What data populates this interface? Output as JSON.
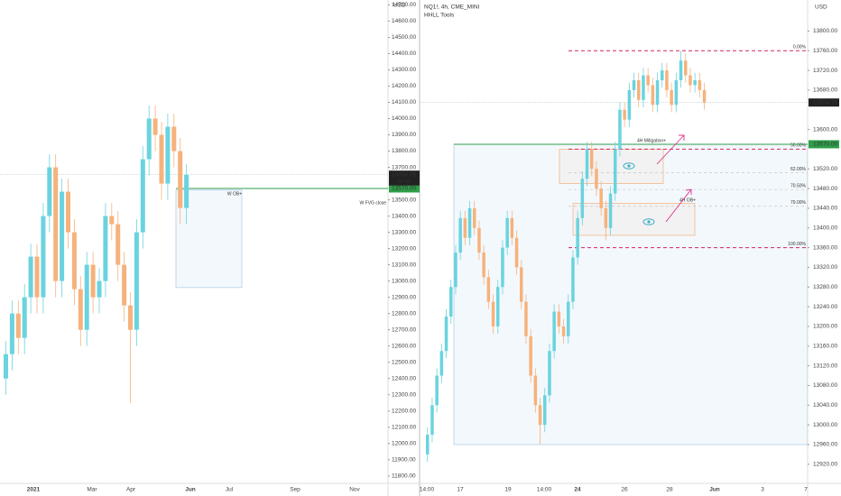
{
  "chart_data": [
    {
      "type": "candlestick",
      "axis_unit": "USD",
      "up_color": "#6ad3df",
      "down_color": "#f6b27c",
      "ylim": [
        11760,
        14730
      ],
      "yticks": [
        {
          "value": 11800,
          "label": "11800.00"
        },
        {
          "value": 11900,
          "label": "11900.00"
        },
        {
          "value": 12000,
          "label": "12000.00"
        },
        {
          "value": 12100,
          "label": "12100.00"
        },
        {
          "value": 12200,
          "label": "12200.00"
        },
        {
          "value": 12300,
          "label": "12300.00"
        },
        {
          "value": 12400,
          "label": "12400.00"
        },
        {
          "value": 12500,
          "label": "12500.00"
        },
        {
          "value": 12600,
          "label": "12600.00"
        },
        {
          "value": 12700,
          "label": "12700.00"
        },
        {
          "value": 12800,
          "label": "12800.00"
        },
        {
          "value": 12900,
          "label": "12900.00"
        },
        {
          "value": 13000,
          "label": "13000.00"
        },
        {
          "value": 13100,
          "label": "13100.00"
        },
        {
          "value": 13200,
          "label": "13200.00"
        },
        {
          "value": 13300,
          "label": "13300.00"
        },
        {
          "value": 13400,
          "label": "13400.00"
        },
        {
          "value": 13500,
          "label": "13500.00"
        },
        {
          "value": 13700,
          "label": "13700.00"
        },
        {
          "value": 13800,
          "label": "13800.00"
        },
        {
          "value": 13900,
          "label": "13900.00"
        },
        {
          "value": 14000,
          "label": "14000.00"
        },
        {
          "value": 14100,
          "label": "14100.00"
        },
        {
          "value": 14200,
          "label": "14200.00"
        },
        {
          "value": 14300,
          "label": "14300.00"
        },
        {
          "value": 14400,
          "label": "14400.00"
        },
        {
          "value": 14500,
          "label": "14500.00"
        },
        {
          "value": 14600,
          "label": "14600.00"
        },
        {
          "value": 14700,
          "label": "14700.00"
        }
      ],
      "candles": [
        [
          12400,
          12630,
          12300,
          12550
        ],
        [
          12550,
          12880,
          12450,
          12800
        ],
        [
          12800,
          12880,
          12550,
          12650
        ],
        [
          12650,
          12980,
          12550,
          12900
        ],
        [
          12900,
          13230,
          12800,
          13150
        ],
        [
          13150,
          13230,
          12800,
          12900
        ],
        [
          12900,
          13480,
          12800,
          13400
        ],
        [
          13400,
          13780,
          13300,
          13700
        ],
        [
          13700,
          13780,
          12900,
          13000
        ],
        [
          13000,
          13630,
          12900,
          13550
        ],
        [
          13550,
          13630,
          13200,
          13300
        ],
        [
          13300,
          13380,
          12850,
          12950
        ],
        [
          12950,
          13030,
          12600,
          12700
        ],
        [
          12700,
          13180,
          12600,
          13100
        ],
        [
          13100,
          13180,
          12800,
          12900
        ],
        [
          12900,
          13080,
          12800,
          13000
        ],
        [
          13000,
          13480,
          12900,
          13400
        ],
        [
          13400,
          13480,
          13250,
          13350
        ],
        [
          13350,
          13430,
          13000,
          13100
        ],
        [
          13100,
          13180,
          12750,
          12850
        ],
        [
          12850,
          12930,
          12250,
          12700
        ],
        [
          12700,
          13380,
          12600,
          13300
        ],
        [
          13300,
          13830,
          13200,
          13750
        ],
        [
          13750,
          14080,
          13650,
          14000
        ],
        [
          14000,
          14080,
          13800,
          13900
        ],
        [
          13900,
          13980,
          13500,
          13600
        ],
        [
          13600,
          14030,
          13500,
          13950
        ],
        [
          13950,
          14030,
          13700,
          13800
        ],
        [
          13800,
          13880,
          13350,
          13450
        ],
        [
          13450,
          13720,
          13350,
          13654.75
        ]
      ],
      "time_labels": [
        "2021",
        "Mar",
        "Apr",
        "Jun",
        "Jul",
        "Sep",
        "Nov"
      ],
      "price_labels": [
        {
          "value": 13654.75,
          "label": "13654.75"
        },
        {
          "value": 13570,
          "label": "13570.00"
        }
      ],
      "countdown": "-4d 1h",
      "annotations": [
        "W OB+",
        "W FVG close"
      ],
      "zones": [
        {
          "top": 13560,
          "bottom": 12960
        }
      ]
    },
    {
      "type": "candlestick",
      "title": "NQ1!, 4h, CME_MINI",
      "subtitle": "HHLL Tools",
      "axis_unit": "USD",
      "up_color": "#6ad3df",
      "down_color": "#f6b27c",
      "ylim": [
        12883,
        13863
      ],
      "yticks": [
        {
          "value": 12920,
          "label": "12920.00"
        },
        {
          "value": 12960,
          "label": "12960.00"
        },
        {
          "value": 13000,
          "label": "13000.00"
        },
        {
          "value": 13040,
          "label": "13040.00"
        },
        {
          "value": 13080,
          "label": "13080.00"
        },
        {
          "value": 13120,
          "label": "13120.00"
        },
        {
          "value": 13160,
          "label": "13160.00"
        },
        {
          "value": 13200,
          "label": "13200.00"
        },
        {
          "value": 13240,
          "label": "13240.00"
        },
        {
          "value": 13280,
          "label": "13280.00"
        },
        {
          "value": 13320,
          "label": "13320.00"
        },
        {
          "value": 13360,
          "label": "13360.00"
        },
        {
          "value": 13400,
          "label": "13400.00"
        },
        {
          "value": 13440,
          "label": "13440.00"
        },
        {
          "value": 13480,
          "label": "13480.00"
        },
        {
          "value": 13520,
          "label": "13520.00"
        },
        {
          "value": 13600,
          "label": "13600.00"
        },
        {
          "value": 13680,
          "label": "13680.00"
        },
        {
          "value": 13720,
          "label": "13720.00"
        },
        {
          "value": 13760,
          "label": "13760.00"
        },
        {
          "value": 13800,
          "label": "13800.00"
        }
      ],
      "candles": [
        [
          12940,
          12995,
          12925,
          12980
        ],
        [
          12980,
          13055,
          12965,
          13040
        ],
        [
          13040,
          13115,
          13025,
          13100
        ],
        [
          13100,
          13165,
          13085,
          13150
        ],
        [
          13150,
          13235,
          13135,
          13220
        ],
        [
          13220,
          13295,
          13205,
          13280
        ],
        [
          13280,
          13365,
          13265,
          13350
        ],
        [
          13350,
          13435,
          13335,
          13420
        ],
        [
          13420,
          13435,
          13365,
          13380
        ],
        [
          13380,
          13455,
          13365,
          13440
        ],
        [
          13440,
          13455,
          13385,
          13400
        ],
        [
          13400,
          13415,
          13335,
          13350
        ],
        [
          13350,
          13365,
          13285,
          13300
        ],
        [
          13300,
          13315,
          13235,
          13250
        ],
        [
          13250,
          13265,
          13185,
          13200
        ],
        [
          13200,
          13295,
          13185,
          13280
        ],
        [
          13280,
          13375,
          13265,
          13360
        ],
        [
          13360,
          13435,
          13345,
          13420
        ],
        [
          13420,
          13435,
          13365,
          13380
        ],
        [
          13380,
          13395,
          13305,
          13320
        ],
        [
          13320,
          13335,
          13235,
          13250
        ],
        [
          13250,
          13265,
          13165,
          13180
        ],
        [
          13180,
          13195,
          13085,
          13100
        ],
        [
          13100,
          13115,
          13025,
          13040
        ],
        [
          13040,
          13055,
          12960,
          13000
        ],
        [
          13000,
          13075,
          12985,
          13060
        ],
        [
          13060,
          13165,
          13045,
          13150
        ],
        [
          13150,
          13245,
          13135,
          13230
        ],
        [
          13230,
          13245,
          13185,
          13200
        ],
        [
          13200,
          13215,
          13165,
          13180
        ],
        [
          13180,
          13265,
          13165,
          13250
        ],
        [
          13250,
          13355,
          13235,
          13340
        ],
        [
          13340,
          13435,
          13325,
          13420
        ],
        [
          13420,
          13515,
          13405,
          13500
        ],
        [
          13500,
          13575,
          13485,
          13560
        ],
        [
          13560,
          13575,
          13505,
          13520
        ],
        [
          13520,
          13535,
          13465,
          13480
        ],
        [
          13480,
          13495,
          13425,
          13440
        ],
        [
          13440,
          13455,
          13375,
          13400
        ],
        [
          13400,
          13485,
          13385,
          13470
        ],
        [
          13470,
          13575,
          13455,
          13560
        ],
        [
          13560,
          13655,
          13545,
          13640
        ],
        [
          13640,
          13655,
          13605,
          13620
        ],
        [
          13620,
          13695,
          13605,
          13680
        ],
        [
          13680,
          13715,
          13665,
          13700
        ],
        [
          13700,
          13715,
          13645,
          13660
        ],
        [
          13660,
          13725,
          13645,
          13710
        ],
        [
          13710,
          13725,
          13675,
          13690
        ],
        [
          13690,
          13705,
          13635,
          13650
        ],
        [
          13650,
          13715,
          13635,
          13700
        ],
        [
          13700,
          13735,
          13685,
          13720
        ],
        [
          13720,
          13735,
          13665,
          13680
        ],
        [
          13680,
          13695,
          13635,
          13650
        ],
        [
          13650,
          13715,
          13635,
          13700
        ],
        [
          13700,
          13760,
          13685,
          13740
        ],
        [
          13740,
          13755,
          13695,
          13710
        ],
        [
          13710,
          13725,
          13675,
          13690
        ],
        [
          13690,
          13715,
          13675,
          13700
        ],
        [
          13700,
          13715,
          13665,
          13680
        ],
        [
          13680,
          13695,
          13640,
          13654.75
        ]
      ],
      "time_labels": [
        "14:00",
        "17",
        "19",
        "14:00",
        "24",
        "26",
        "28",
        "Jun",
        "3",
        "7"
      ],
      "price_labels": [
        {
          "value": 13654.75,
          "label": "13654.75"
        },
        {
          "value": 13570,
          "label": "13570.00"
        }
      ],
      "fib_levels": [
        {
          "value": 13760,
          "label": "0.00%"
        },
        {
          "value": 13560,
          "label": "50.00%"
        },
        {
          "value": 13512,
          "label": "62.00%"
        },
        {
          "value": 13478,
          "label": "70.50%"
        },
        {
          "value": 13444,
          "label": "79.00%"
        },
        {
          "value": 13360,
          "label": "100.00%"
        }
      ],
      "annotations": [
        "4H Mitigation+",
        "4H OB+"
      ],
      "zones": [
        {
          "top": 13570,
          "bottom": 12960
        },
        {
          "top": 13560,
          "bottom": 13490
        },
        {
          "top": 13450,
          "bottom": 13385
        }
      ]
    }
  ]
}
